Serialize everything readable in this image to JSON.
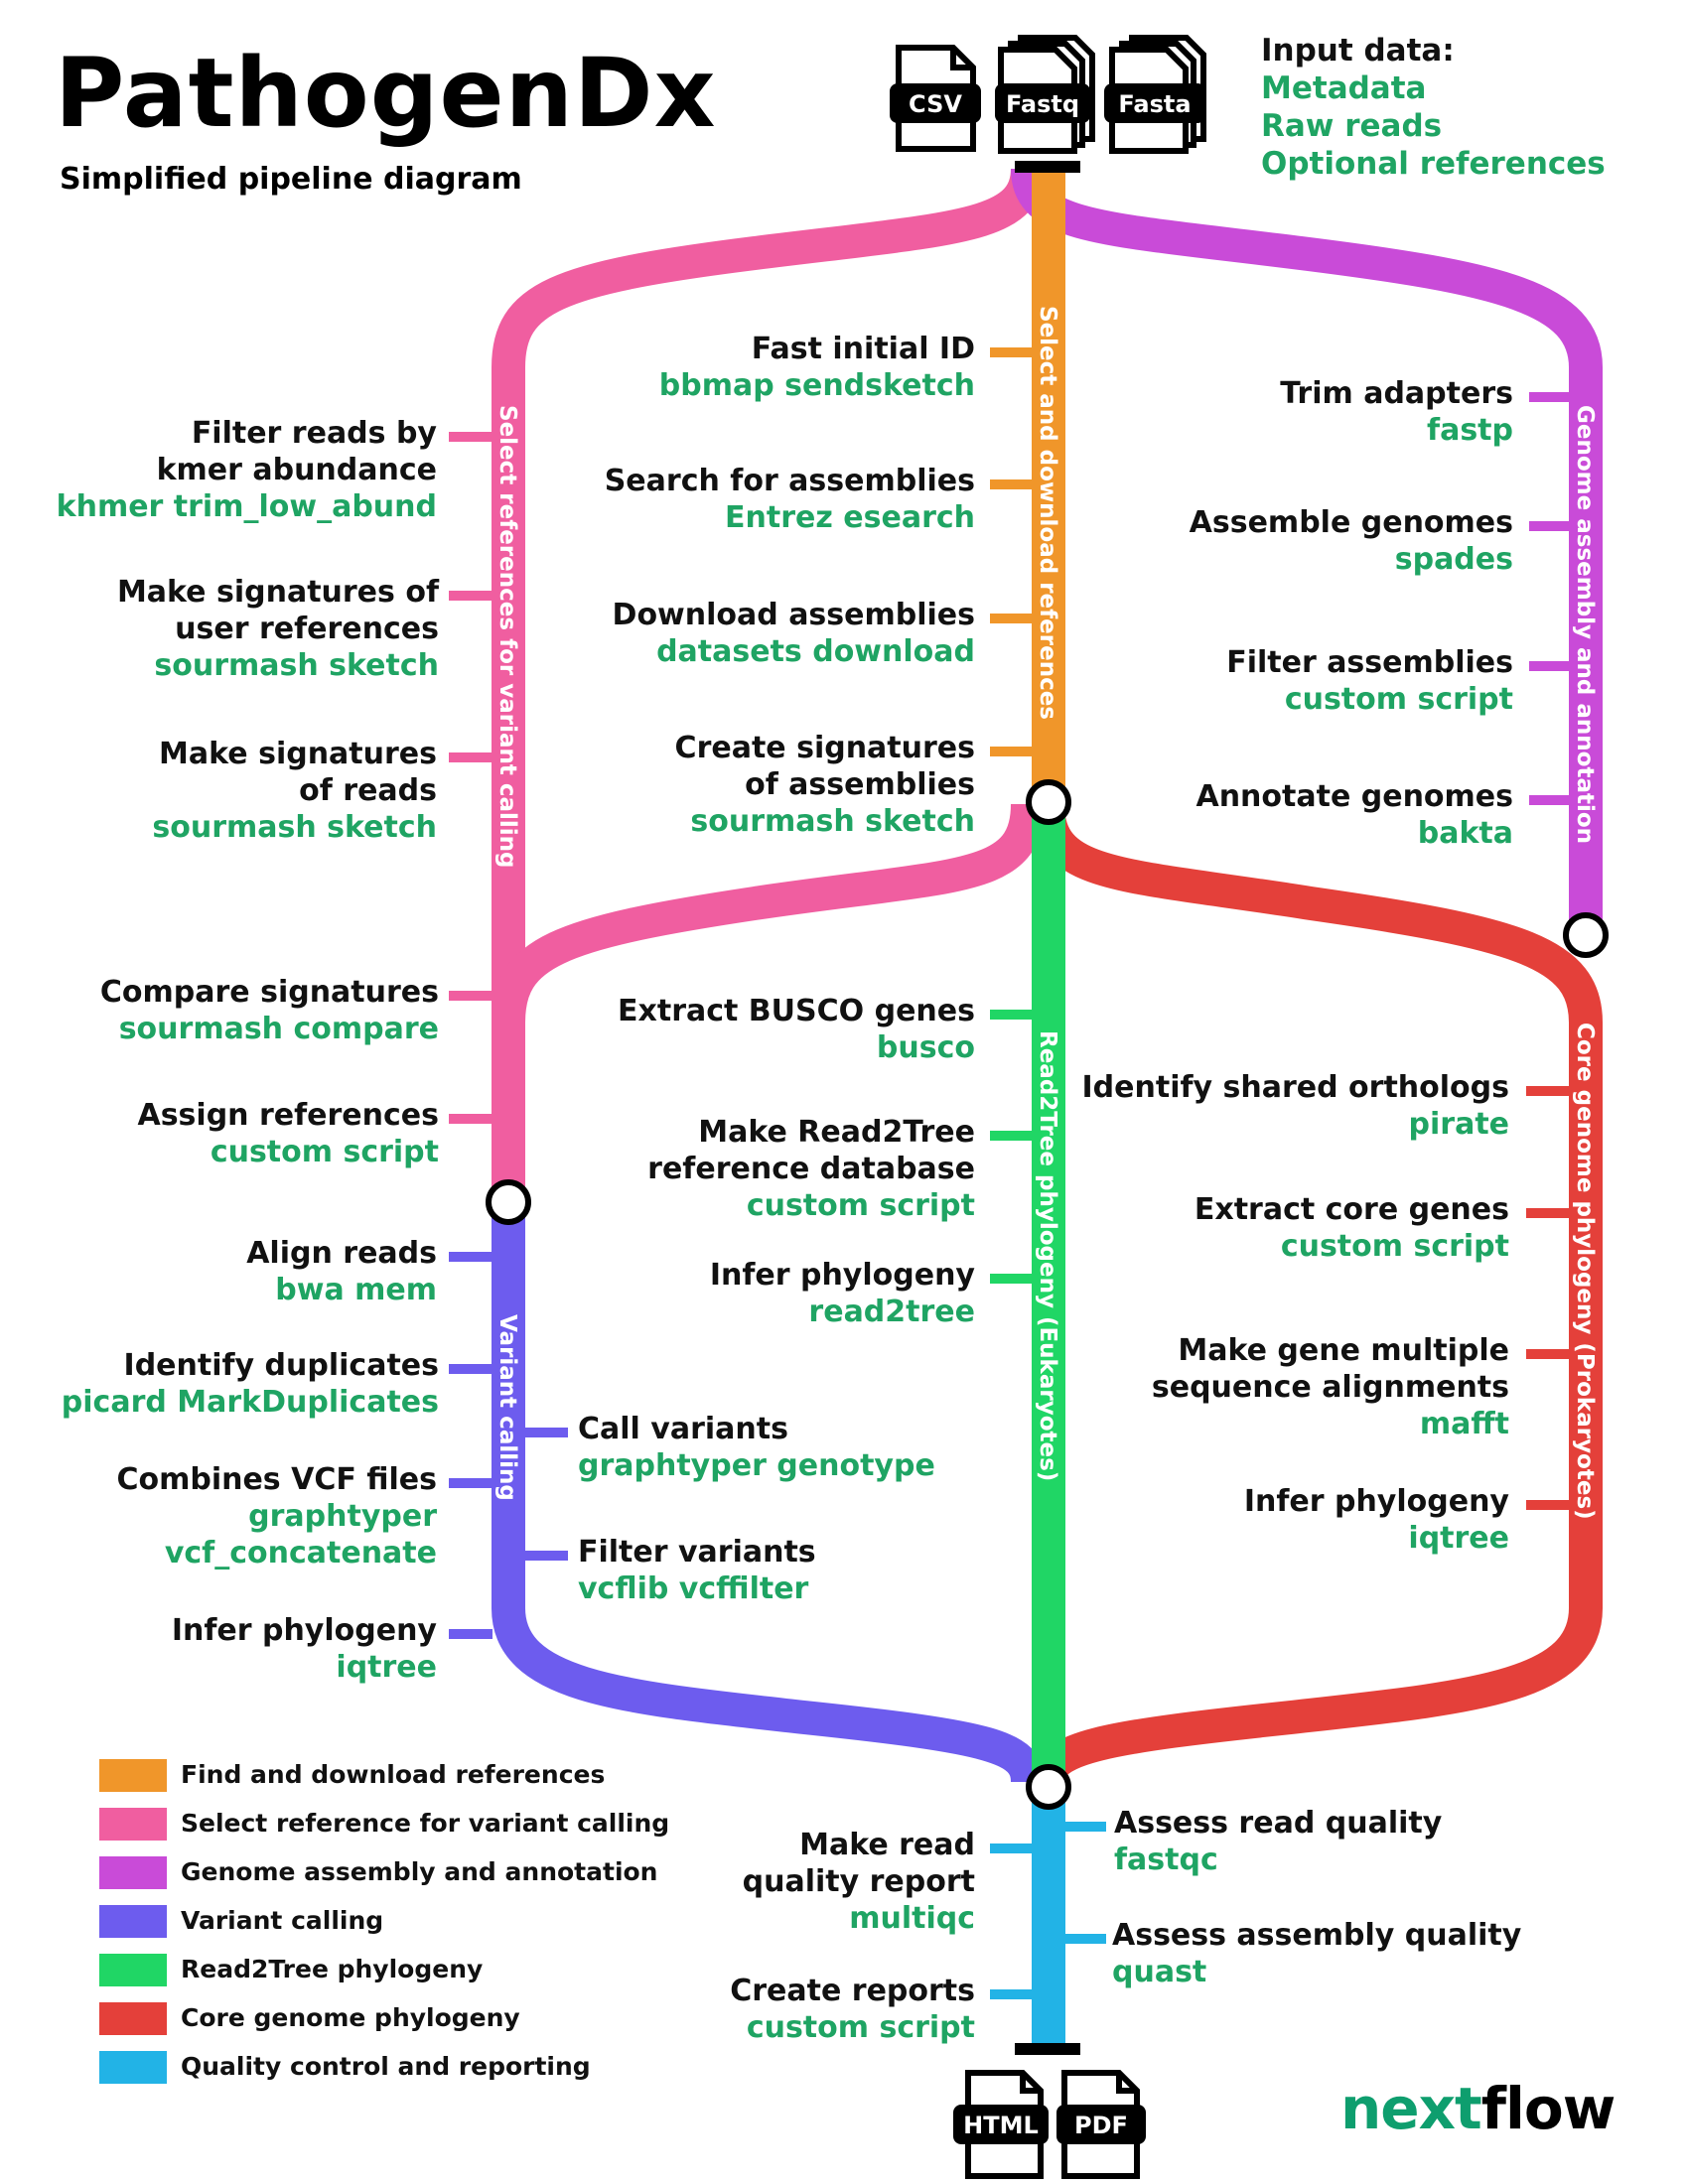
{
  "title": "PathogenDx",
  "subtitle": "Simplified pipeline diagram",
  "input_data": {
    "heading": "Input data:",
    "items": [
      "Metadata",
      "Raw reads",
      "Optional references"
    ]
  },
  "files": {
    "inputs": [
      "CSV",
      "Fastq",
      "Fasta"
    ],
    "outputs": [
      "HTML",
      "PDF"
    ]
  },
  "colors": {
    "orange": "#f0962a",
    "pink": "#f05ea0",
    "magenta": "#c94bd8",
    "violet": "#6d5cee",
    "green": "#20d665",
    "red": "#e4403a",
    "blue": "#22b3e6",
    "tool_green": "#1fa463"
  },
  "lines": {
    "orange": "Select and download references",
    "pink": "Select references for variant calling",
    "magenta": "Genome assembly and annotation",
    "violet": "Variant calling",
    "green": "Read2Tree phylogeny (Eukaryotes)",
    "red": "Core genome phylogeny (Prokaryotes)"
  },
  "steps": {
    "fast_initial_id": {
      "name": "Fast initial ID",
      "tool": "bbmap sendsketch"
    },
    "search_assemblies": {
      "name": "Search for assemblies",
      "tool": "Entrez esearch"
    },
    "download_assemblies": {
      "name": "Download assemblies",
      "tool": "datasets download"
    },
    "create_signatures": {
      "name_1": "Create signatures",
      "name_2": "of assemblies",
      "tool": "sourmash sketch"
    },
    "filter_reads": {
      "name_1": "Filter reads by",
      "name_2": "kmer abundance",
      "tool": "khmer trim_low_abund"
    },
    "sig_user_refs": {
      "name_1": "Make signatures of",
      "name_2": "user references",
      "tool": "sourmash sketch"
    },
    "sig_reads": {
      "name_1": "Make signatures",
      "name_2": "of reads",
      "tool": "sourmash sketch"
    },
    "compare_sigs": {
      "name": "Compare signatures",
      "tool": "sourmash compare"
    },
    "assign_refs": {
      "name": "Assign references",
      "tool": "custom script"
    },
    "trim_adapters": {
      "name": "Trim adapters",
      "tool": "fastp"
    },
    "assemble": {
      "name": "Assemble genomes",
      "tool": "spades"
    },
    "filter_assemblies": {
      "name": "Filter assemblies",
      "tool": "custom script"
    },
    "annotate": {
      "name": "Annotate genomes",
      "tool": "bakta"
    },
    "busco": {
      "name": "Extract BUSCO genes",
      "tool": "busco"
    },
    "read2tree_db": {
      "name_1": "Make Read2Tree",
      "name_2": "reference database",
      "tool": "custom script"
    },
    "infer_r2t": {
      "name": "Infer phylogeny",
      "tool": "read2tree"
    },
    "orthologs": {
      "name": "Identify shared orthologs",
      "tool": "pirate"
    },
    "core_genes": {
      "name": "Extract core genes",
      "tool": "custom script"
    },
    "msa": {
      "name_1": "Make gene multiple",
      "name_2": "sequence alignments",
      "tool": "mafft"
    },
    "infer_core": {
      "name": "Infer phylogeny",
      "tool": "iqtree"
    },
    "align": {
      "name": "Align reads",
      "tool": "bwa mem"
    },
    "dups": {
      "name": "Identify duplicates",
      "tool": "picard MarkDuplicates"
    },
    "call_variants": {
      "name": "Call variants",
      "tool": "graphtyper genotype"
    },
    "combine_vcf": {
      "name": "Combines VCF files",
      "tool_1": "graphtyper",
      "tool_2": "vcf_concatenate"
    },
    "filter_variants": {
      "name": "Filter variants",
      "tool": "vcflib vcffilter"
    },
    "infer_variant": {
      "name": "Infer phylogeny",
      "tool": "iqtree"
    },
    "read_quality": {
      "name": "Assess read quality",
      "tool": "fastqc"
    },
    "read_report": {
      "name_1": "Make read",
      "name_2": "quality report",
      "tool": "multiqc"
    },
    "assembly_quality": {
      "name": "Assess assembly quality",
      "tool": "quast"
    },
    "reports": {
      "name": "Create reports",
      "tool": "custom script"
    }
  },
  "legend": [
    {
      "label": "Find and download references",
      "color": "#f0962a"
    },
    {
      "label": "Select reference for variant calling",
      "color": "#f05ea0"
    },
    {
      "label": "Genome assembly and annotation",
      "color": "#c94bd8"
    },
    {
      "label": "Variant calling",
      "color": "#6d5cee"
    },
    {
      "label": "Read2Tree phylogeny",
      "color": "#20d665"
    },
    {
      "label": "Core genome phylogeny",
      "color": "#e4403a"
    },
    {
      "label": "Quality control and reporting",
      "color": "#22b3e6"
    }
  ],
  "logo": {
    "part_1": "next",
    "part_2": "flow"
  }
}
